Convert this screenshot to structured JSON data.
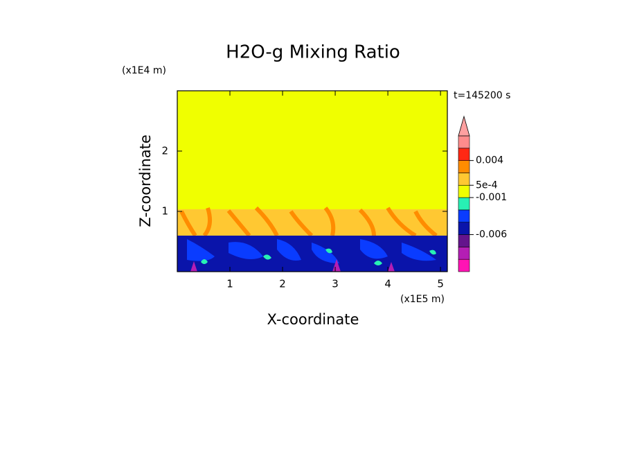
{
  "chart_data": {
    "type": "contour",
    "title": "H2O-g Mixing Ratio",
    "x_label": "X-coordinate",
    "y_label": "Z-coordinate",
    "x_unit": "(x1E5 m)",
    "y_unit": "(x1E4 m)",
    "annotation": "t=145200 s",
    "xlim": [
      0,
      5.13
    ],
    "ylim": [
      0,
      3
    ],
    "xticks": [
      1,
      2,
      3,
      4,
      5
    ],
    "yticks": [
      1,
      2
    ],
    "colorbar": {
      "levels": [
        -0.009,
        -0.008,
        -0.007,
        -0.006,
        -0.004,
        -0.002,
        -0.001,
        0.0005,
        0.002,
        0.004,
        0.006,
        0.008
      ],
      "colors": [
        "#ff14b4",
        "#b41eb4",
        "#64148c",
        "#0a14aa",
        "#0a3cff",
        "#28f0b4",
        "#f0ff00",
        "#ffc832",
        "#ff8c00",
        "#ff2814",
        "#ff8c8c"
      ],
      "extend_color": "#ffa0a0",
      "ticks": [
        {
          "value": 0.004,
          "label": "0.004"
        },
        {
          "value": 0.0005,
          "label": "5e-4"
        },
        -0.001,
        -0.006
      ]
    }
  }
}
